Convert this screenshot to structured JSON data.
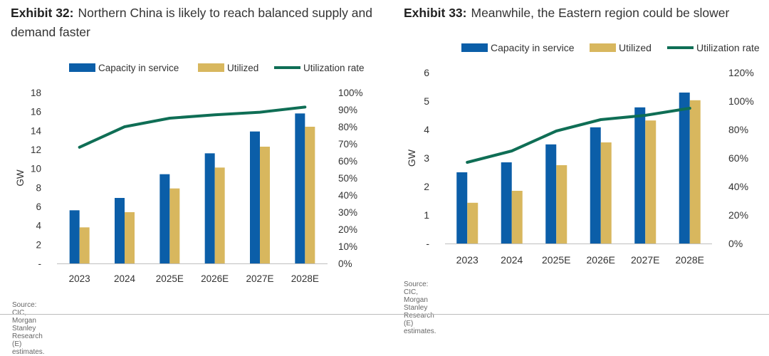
{
  "chart_data": [
    {
      "type": "bar",
      "exhibit_label": "Exhibit 32:",
      "title": "Northern China is likely to reach balanced supply and demand faster",
      "categories": [
        "2023",
        "2024",
        "2025E",
        "2026E",
        "2027E",
        "2028E"
      ],
      "series": [
        {
          "name": "Capacity in service",
          "type": "bar",
          "axis": "left",
          "values": [
            5.6,
            6.9,
            9.4,
            11.6,
            13.9,
            15.8
          ]
        },
        {
          "name": "Utilized",
          "type": "bar",
          "axis": "left",
          "values": [
            3.8,
            5.4,
            7.9,
            10.1,
            12.3,
            14.4
          ]
        },
        {
          "name": "Utilization rate",
          "type": "line",
          "axis": "right",
          "values": [
            68,
            80,
            85,
            87,
            88.5,
            91.5
          ]
        }
      ],
      "ylabel": "GW",
      "ylim": [
        0,
        18
      ],
      "y_ticks": [
        "-",
        "2",
        "4",
        "6",
        "8",
        "10",
        "12",
        "14",
        "16",
        "18"
      ],
      "y2lim": [
        0,
        100
      ],
      "y2_ticks": [
        "0%",
        "10%",
        "20%",
        "30%",
        "40%",
        "50%",
        "60%",
        "70%",
        "80%",
        "90%",
        "100%"
      ],
      "legend_position": "top",
      "grid": false,
      "source": "Source: CIC, Morgan Stanley Research (E) estimates."
    },
    {
      "type": "bar",
      "exhibit_label": "Exhibit 33:",
      "title": "Meanwhile, the Eastern region could be slower",
      "categories": [
        "2023",
        "2024",
        "2025E",
        "2026E",
        "2027E",
        "2028E"
      ],
      "series": [
        {
          "name": "Capacity in service",
          "type": "bar",
          "axis": "left",
          "values": [
            2.5,
            2.85,
            3.48,
            4.08,
            4.78,
            5.3
          ]
        },
        {
          "name": "Utilized",
          "type": "bar",
          "axis": "left",
          "values": [
            1.43,
            1.85,
            2.75,
            3.55,
            4.32,
            5.03
          ]
        },
        {
          "name": "Utilization rate",
          "type": "line",
          "axis": "right",
          "values": [
            57,
            65,
            79,
            87,
            90,
            95
          ]
        }
      ],
      "ylabel": "GW",
      "ylim": [
        0,
        6
      ],
      "y_ticks": [
        "-",
        "1",
        "2",
        "3",
        "4",
        "5",
        "6"
      ],
      "y2lim": [
        0,
        120
      ],
      "y2_ticks": [
        "0%",
        "20%",
        "40%",
        "60%",
        "80%",
        "100%",
        "120%"
      ],
      "legend_position": "top",
      "grid": false,
      "source": "Source: CIC, Morgan Stanley Research (E) estimates."
    }
  ],
  "colors": {
    "capacity": "#0b5ea8",
    "utilized": "#d8b75e",
    "rate": "#0f6e55",
    "axis": "#bfbfbf"
  }
}
